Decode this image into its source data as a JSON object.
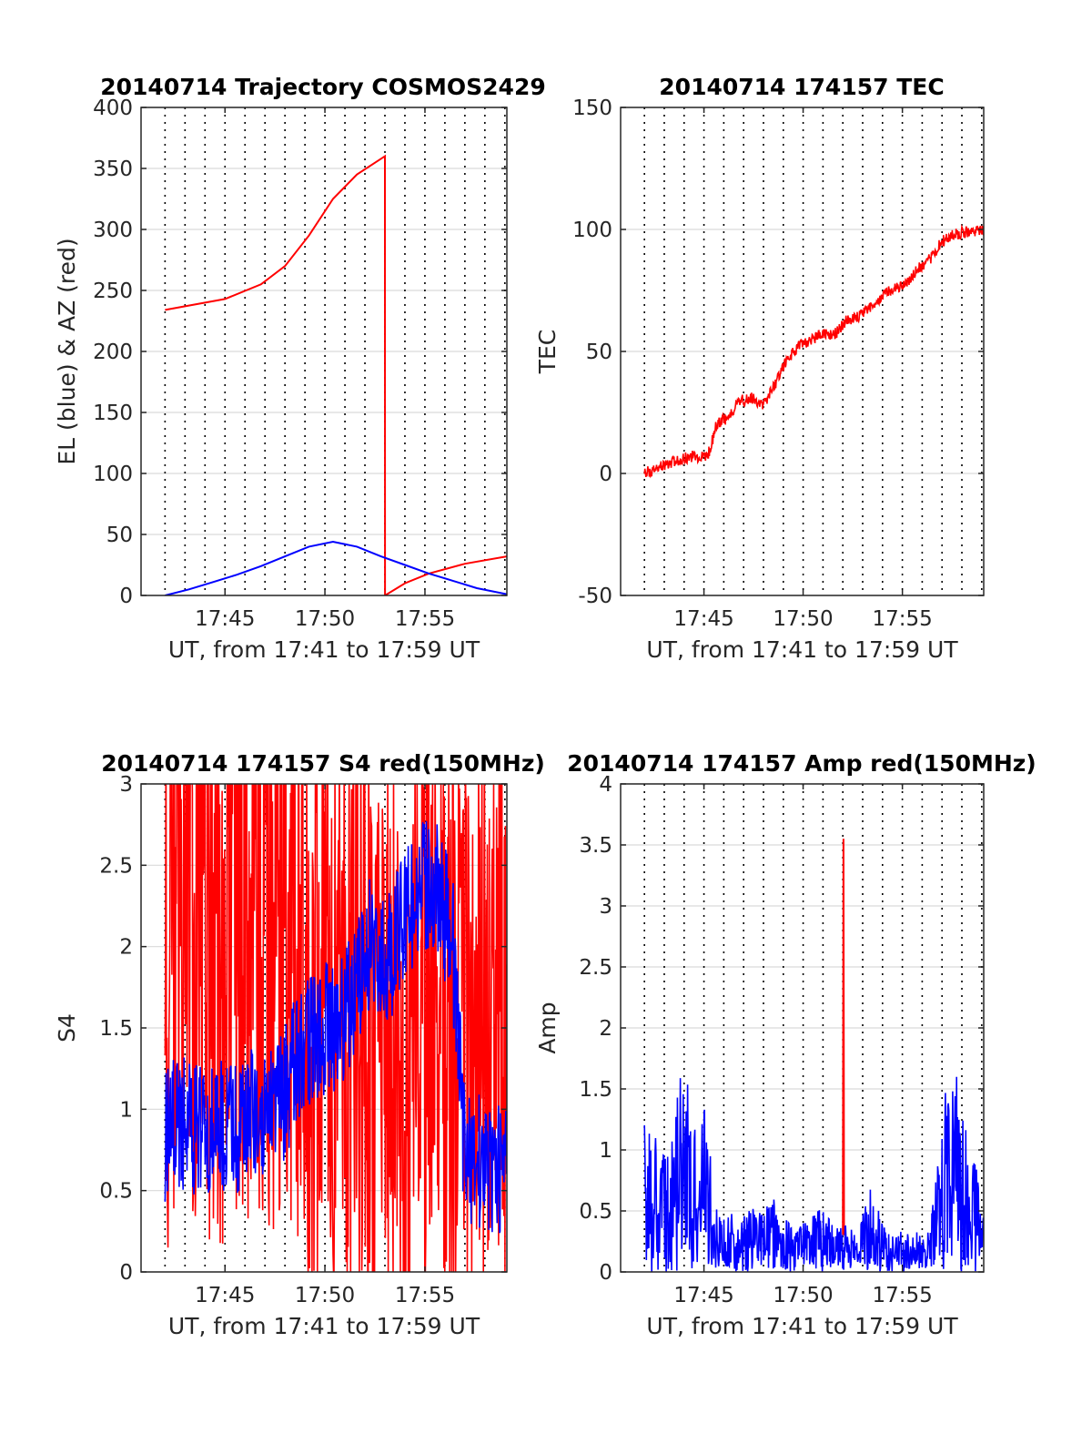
{
  "colors": {
    "red": "#ff0000",
    "blue": "#0000ff",
    "axis": "#262626",
    "grid": "#d9d9d9",
    "minor": "#000000"
  },
  "chart_data": [
    {
      "id": "trajectory",
      "type": "line",
      "title": "20140714 Trajectory COSMOS2429",
      "xlabel": "UT, from 17:41 to 17:59 UT",
      "ylabel": "EL (blue) & AZ (red)",
      "xlim": [
        17.68,
        17.985
      ],
      "ylim": [
        0,
        400
      ],
      "yticks": [
        0,
        50,
        100,
        150,
        200,
        250,
        300,
        350,
        400
      ],
      "xticks": [
        {
          "v": 17.75,
          "label": "17:45"
        },
        {
          "v": 17.8333,
          "label": "17:50"
        },
        {
          "v": 17.9167,
          "label": "17:55"
        }
      ],
      "grid": "on",
      "series": [
        {
          "color": "red",
          "x": [
            17.7,
            17.75,
            17.78,
            17.8,
            17.82,
            17.84,
            17.86,
            17.8833,
            17.8834,
            17.9,
            17.92,
            17.95,
            17.985
          ],
          "y": [
            234,
            243,
            255,
            270,
            295,
            325,
            345,
            360,
            0,
            10,
            18,
            26,
            32
          ]
        },
        {
          "color": "blue",
          "x": [
            17.7,
            17.72,
            17.74,
            17.76,
            17.78,
            17.8,
            17.82,
            17.84,
            17.86,
            17.88,
            17.9,
            17.92,
            17.94,
            17.96,
            17.985
          ],
          "y": [
            0,
            5,
            11,
            17,
            24,
            32,
            40,
            44,
            40,
            32,
            25,
            18,
            12,
            6,
            1
          ]
        }
      ]
    },
    {
      "id": "tec",
      "type": "line",
      "title": "20140714 174157 TEC",
      "xlabel": "UT, from 17:41 to 17:59 UT",
      "ylabel": "TEC",
      "xlim": [
        17.68,
        17.985
      ],
      "ylim": [
        -50,
        150
      ],
      "yticks": [
        -50,
        0,
        50,
        100,
        150
      ],
      "xticks": [
        {
          "v": 17.75,
          "label": "17:45"
        },
        {
          "v": 17.8333,
          "label": "17:50"
        },
        {
          "v": 17.9167,
          "label": "17:55"
        }
      ],
      "grid": "on",
      "series": [
        {
          "color": "red",
          "noise": 0.8,
          "x": [
            17.7,
            17.71,
            17.72,
            17.73,
            17.74,
            17.75,
            17.755,
            17.76,
            17.77,
            17.78,
            17.79,
            17.8,
            17.81,
            17.82,
            17.83,
            17.84,
            17.85,
            17.86,
            17.87,
            17.88,
            17.89,
            17.9,
            17.91,
            17.92,
            17.93,
            17.94,
            17.95,
            17.96,
            17.97,
            17.985
          ],
          "y": [
            0,
            2,
            4,
            6,
            7,
            7,
            9,
            20,
            23,
            30,
            31,
            28,
            37,
            47,
            52,
            55,
            57,
            57,
            63,
            64,
            68,
            73,
            76,
            78,
            84,
            88,
            95,
            98,
            99,
            100
          ]
        }
      ]
    },
    {
      "id": "s4",
      "type": "line",
      "title": "20140714 174157 S4 red(150MHz)",
      "xlabel": "UT, from 17:41 to 17:59 UT",
      "ylabel": "S4",
      "xlim": [
        17.68,
        17.985
      ],
      "ylim": [
        0,
        3
      ],
      "yticks": [
        0,
        0.5,
        1,
        1.5,
        2,
        2.5,
        3
      ],
      "xticks": [
        {
          "v": 17.75,
          "label": "17:45"
        },
        {
          "v": 17.8333,
          "label": "17:50"
        },
        {
          "v": 17.9167,
          "label": "17:55"
        }
      ],
      "grid": "on",
      "series": [
        {
          "color": "red",
          "noise": 1.6,
          "x": [
            17.7,
            17.72,
            17.74,
            17.75,
            17.76,
            17.78,
            17.8,
            17.81,
            17.82,
            17.83,
            17.84,
            17.85,
            17.86,
            17.87,
            17.88,
            17.89,
            17.9,
            17.91,
            17.92,
            17.93,
            17.94,
            17.95,
            17.96,
            17.97,
            17.985
          ],
          "y": [
            2.0,
            2.2,
            2.0,
            1.8,
            2.2,
            2.0,
            2.3,
            2.0,
            1.6,
            1.5,
            1.6,
            1.5,
            1.8,
            1.4,
            1.2,
            1.5,
            1.3,
            1.5,
            1.4,
            1.6,
            1.5,
            1.5,
            1.6,
            1.5,
            1.5
          ]
        },
        {
          "color": "blue",
          "noise": 0.35,
          "x": [
            17.7,
            17.71,
            17.72,
            17.73,
            17.74,
            17.75,
            17.76,
            17.77,
            17.78,
            17.79,
            17.8,
            17.81,
            17.82,
            17.83,
            17.84,
            17.85,
            17.86,
            17.87,
            17.88,
            17.89,
            17.9,
            17.91,
            17.92,
            17.93,
            17.94,
            17.95,
            17.96,
            17.97,
            17.985
          ],
          "y": [
            0.8,
            0.95,
            0.9,
            0.85,
            0.9,
            0.9,
            0.9,
            0.95,
            1.0,
            1.0,
            1.1,
            1.3,
            1.4,
            1.5,
            1.5,
            1.6,
            1.8,
            2.0,
            1.9,
            2.0,
            2.2,
            2.3,
            2.4,
            2.3,
            2.0,
            0.7,
            0.7,
            0.65,
            0.6
          ]
        }
      ]
    },
    {
      "id": "amp",
      "type": "line",
      "title": "20140714 174157 Amp red(150MHz)",
      "xlabel": "UT, from 17:41 to 17:59 UT",
      "ylabel": "Amp",
      "xlim": [
        17.68,
        17.985
      ],
      "ylim": [
        0,
        4
      ],
      "yticks": [
        0,
        0.5,
        1,
        1.5,
        2,
        2.5,
        3,
        3.5,
        4
      ],
      "xticks": [
        {
          "v": 17.75,
          "label": "17:45"
        },
        {
          "v": 17.8333,
          "label": "17:50"
        },
        {
          "v": 17.9167,
          "label": "17:55"
        }
      ],
      "grid": "on",
      "series": [
        {
          "color": "red",
          "x": [
            17.8667,
            17.8672,
            17.8677
          ],
          "y": [
            0.3,
            3.55,
            0.3
          ]
        },
        {
          "color": "blue",
          "noise": 1.0,
          "x": [
            17.7,
            17.705,
            17.71,
            17.72,
            17.73,
            17.74,
            17.745,
            17.75,
            17.76,
            17.77,
            17.78,
            17.79,
            17.8,
            17.81,
            17.82,
            17.83,
            17.84,
            17.85,
            17.86,
            17.87,
            17.88,
            17.89,
            17.9,
            17.91,
            17.92,
            17.93,
            17.94,
            17.95,
            17.96,
            17.97,
            17.985
          ],
          "y": [
            1.2,
            1.0,
            1.1,
            0.9,
            1.5,
            1.4,
            0.8,
            1.3,
            0.5,
            0.45,
            0.45,
            0.5,
            0.45,
            0.6,
            0.4,
            0.35,
            0.4,
            0.5,
            0.35,
            0.35,
            0.3,
            0.7,
            0.35,
            0.3,
            0.3,
            0.3,
            0.3,
            1.3,
            1.5,
            1.3,
            0.4
          ]
        }
      ]
    }
  ]
}
